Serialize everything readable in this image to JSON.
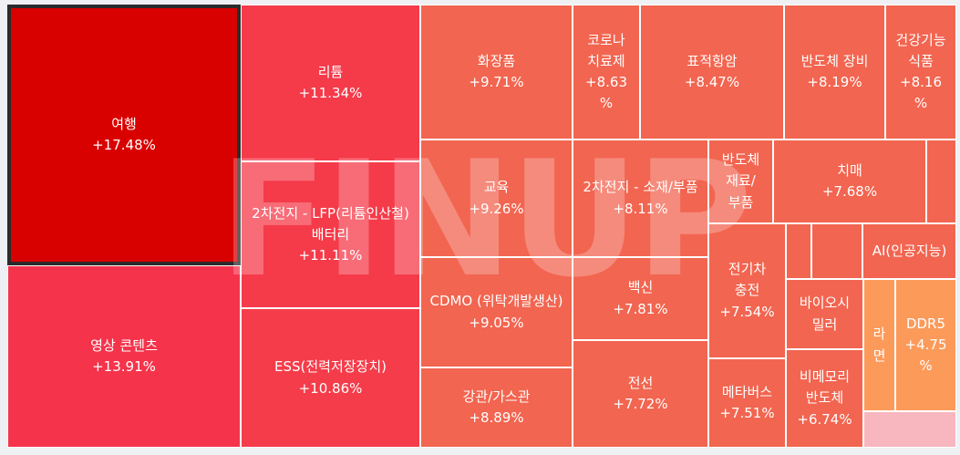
{
  "watermark_text": "FINUP",
  "colors": {
    "selected_border": "#2b2b2b",
    "tile_border": "#ffffff",
    "background": "#eef0f4"
  },
  "chart_data": {
    "type": "treemap",
    "metric": "daily change %",
    "items": [
      {
        "name": "여행",
        "change": "+17.48%",
        "value": 17.48,
        "color": "#d90000",
        "selected": true
      },
      {
        "name": "영상 콘텐츠",
        "change": "+13.91%",
        "value": 13.91,
        "color": "#f5334b"
      },
      {
        "name": "리튬",
        "change": "+11.34%",
        "value": 11.34,
        "color": "#f53a4a"
      },
      {
        "name": "2차전지 - LFP(리튬인산철) 배터리",
        "change": "+11.11%",
        "value": 11.11,
        "color": "#f53b4a"
      },
      {
        "name": "ESS(전력저장장치)",
        "change": "+10.86%",
        "value": 10.86,
        "color": "#f53c4a"
      },
      {
        "name": "화장품",
        "change": "+9.71%",
        "value": 9.71,
        "color": "#f26550"
      },
      {
        "name": "교육",
        "change": "+9.26%",
        "value": 9.26,
        "color": "#f26550"
      },
      {
        "name": "CDMO (위탁개발생산)",
        "change": "+9.05%",
        "value": 9.05,
        "color": "#f26550"
      },
      {
        "name": "강관/가스관",
        "change": "+8.89%",
        "value": 8.89,
        "color": "#f26550"
      },
      {
        "name": "코로나 치료제",
        "change": "+8.63%",
        "value": 8.63,
        "color": "#f26550"
      },
      {
        "name": "표적항암",
        "change": "+8.47%",
        "value": 8.47,
        "color": "#f26550"
      },
      {
        "name": "반도체 장비",
        "change": "+8.19%",
        "value": 8.19,
        "color": "#f26550"
      },
      {
        "name": "건강기능식품",
        "change": "+8.16%",
        "value": 8.16,
        "color": "#f26550"
      },
      {
        "name": "2차전지 - 소재/부품",
        "change": "+8.11%",
        "value": 8.11,
        "color": "#f26550"
      },
      {
        "name": "반도체 재료/부품",
        "change": "",
        "value": null,
        "color": "#f26550"
      },
      {
        "name": "치매",
        "change": "+7.68%",
        "value": 7.68,
        "color": "#f26550"
      },
      {
        "name": "AI(인공지능)",
        "change": "",
        "value": null,
        "color": "#f26550"
      },
      {
        "name": "백신",
        "change": "+7.81%",
        "value": 7.81,
        "color": "#f26550"
      },
      {
        "name": "전선",
        "change": "+7.72%",
        "value": 7.72,
        "color": "#f26550"
      },
      {
        "name": "전기차 충전",
        "change": "+7.54%",
        "value": 7.54,
        "color": "#f26550"
      },
      {
        "name": "메타버스",
        "change": "+7.51%",
        "value": 7.51,
        "color": "#f26550"
      },
      {
        "name": "바이오시밀러",
        "change": "",
        "value": null,
        "color": "#f26550"
      },
      {
        "name": "비메모리 반도체",
        "change": "+6.74%",
        "value": 6.74,
        "color": "#f26550"
      },
      {
        "name": "라면",
        "change": "",
        "value": null,
        "color": "#fc9a5a"
      },
      {
        "name": "DDR5",
        "change": "+4.75%",
        "value": 4.75,
        "color": "#fc9a5a"
      }
    ]
  }
}
